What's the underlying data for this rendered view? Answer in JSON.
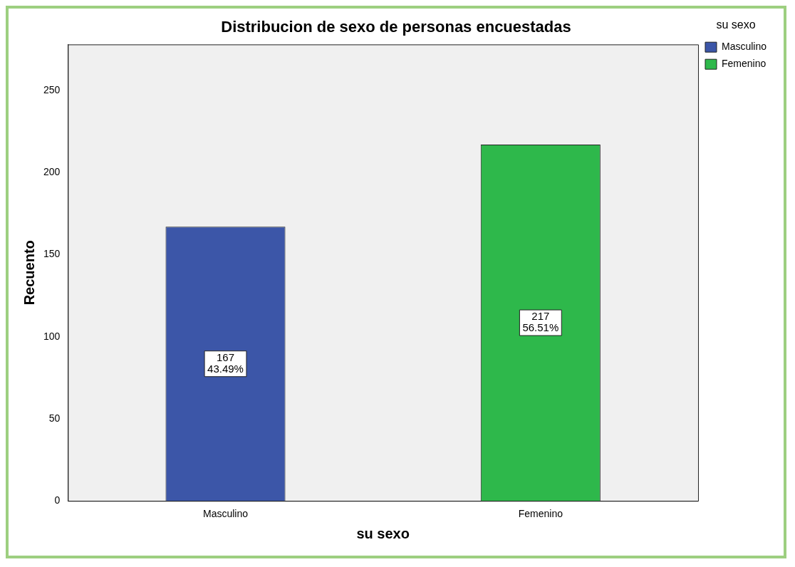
{
  "chart_data": {
    "type": "bar",
    "title": "Distribucion de sexo de personas encuestadas",
    "xlabel": "su sexo",
    "ylabel": "Recuento",
    "legend_title": "su sexo",
    "categories": [
      "Masculino",
      "Femenino"
    ],
    "series": [
      {
        "name": "Masculino",
        "color": "#3c56a8",
        "values": [
          167,
          null
        ],
        "value_labels": [
          "167\n43.49%",
          null
        ]
      },
      {
        "name": "Femenino",
        "color": "#2eb84b",
        "values": [
          null,
          217
        ],
        "value_labels": [
          null,
          "217\n56.51%"
        ]
      }
    ],
    "ylim": [
      0,
      278
    ],
    "yticks": [
      0,
      50,
      100,
      150,
      200,
      250
    ],
    "grid": false,
    "legend": "top right"
  }
}
